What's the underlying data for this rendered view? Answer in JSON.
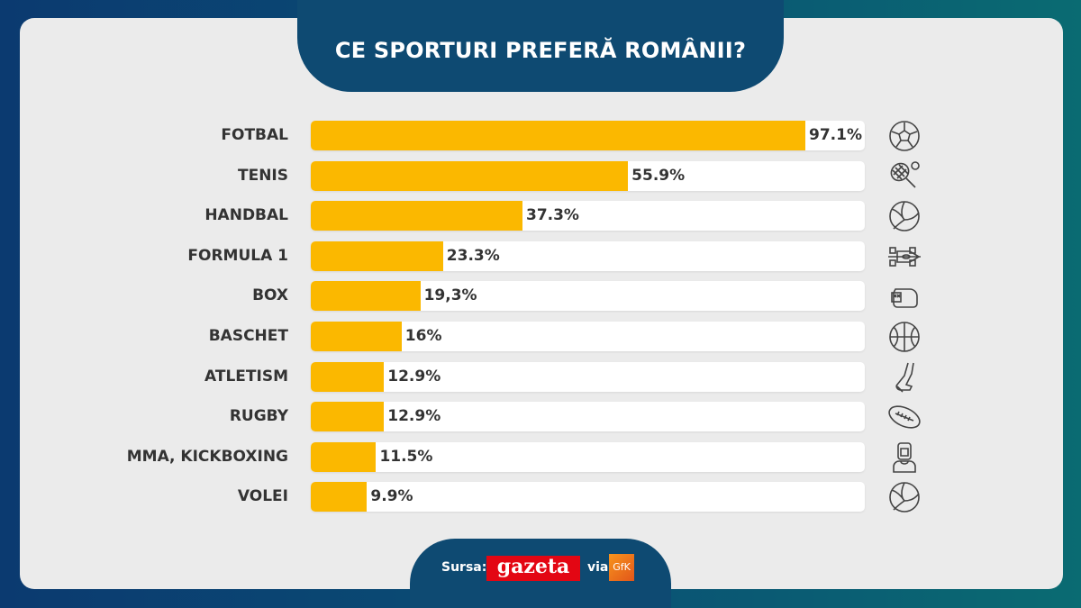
{
  "title": "CE SPORTURI PREFERĂ ROMÂNII?",
  "chart_data": {
    "type": "bar",
    "orientation": "horizontal",
    "title": "CE SPORTURI PREFERĂ ROMÂNII?",
    "categories": [
      "FOTBAL",
      "TENIS",
      "HANDBAL",
      "FORMULA 1",
      "BOX",
      "BASCHET",
      "ATLETISM",
      "RUGBY",
      "MMA, KICKBOXING",
      "VOLEI"
    ],
    "values": [
      97.1,
      55.9,
      37.3,
      23.3,
      19.3,
      16,
      12.9,
      12.9,
      11.5,
      9.9
    ],
    "value_labels": [
      "97.1%",
      "55.9%",
      "37.3%",
      "23.3%",
      "19,3%",
      "16%",
      "12.9%",
      "12.9%",
      "11.5%",
      "9.9%"
    ],
    "icons": [
      "soccer-ball-icon",
      "tennis-racket-icon",
      "volleyball-icon",
      "formula-1-car-icon",
      "boxing-glove-icon",
      "basketball-icon",
      "running-leg-icon",
      "rugby-ball-icon",
      "mma-fighter-icon",
      "volleyball-icon"
    ],
    "bar_color": "#fbb800",
    "xlim": [
      0,
      100
    ],
    "grid": false
  },
  "footer": {
    "source_label": "Sursa:",
    "brand": "gazeta",
    "via": "via",
    "partner": "GfK"
  },
  "colors": {
    "background_left": "#0b3a70",
    "background_right": "#0a6b72",
    "panel": "#ebebeb",
    "tab": "#0e4a72"
  }
}
